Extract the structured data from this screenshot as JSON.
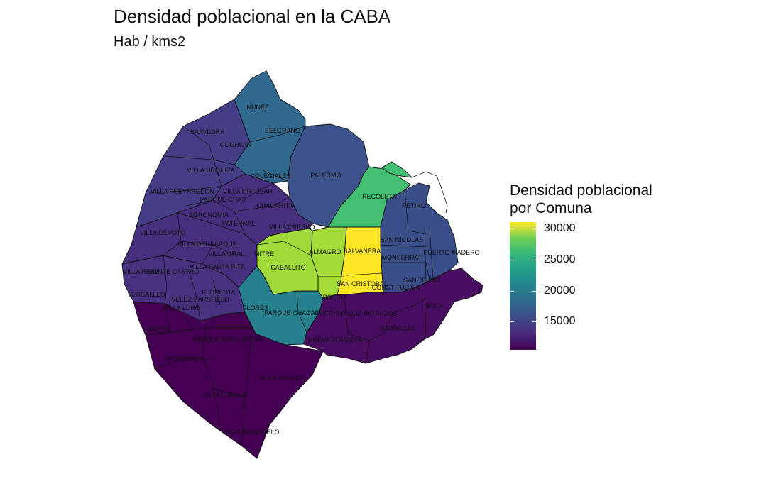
{
  "title": "Densidad poblacional en la CABA",
  "subtitle": "Hab / kms2",
  "legend": {
    "title_line1": "Densidad poblacional",
    "title_line2": "por Comuna",
    "ticks": [
      "30000",
      "25000",
      "20000",
      "15000"
    ],
    "tick_values": [
      30000,
      25000,
      20000,
      15000
    ],
    "range": [
      10500,
      31000
    ],
    "palette": "viridis"
  },
  "colors": {
    "c1": "#3a4f8a",
    "c2": "#43bf71",
    "c3": "#fde725",
    "c4": "#470d60",
    "c5": "#a5db36",
    "c6": "#a0da39",
    "c7": "#27808e",
    "c8": "#440154",
    "c9": "#440154",
    "c10": "#46327e",
    "c11": "#46307e",
    "c12": "#433e85",
    "c13": "#31688e",
    "c14": "#3b528b",
    "c15": "#472f7d"
  },
  "comunas": [
    {
      "id": 1,
      "barrios": [
        "RETIRO",
        "SAN NICOLAS",
        "PUERTO MADERO",
        "SAN TELMO",
        "MONSERRAT",
        "CONSTITUCION"
      ],
      "density": 12500
    },
    {
      "id": 2,
      "barrios": [
        "RECOLETA"
      ],
      "density": 24000
    },
    {
      "id": 3,
      "barrios": [
        "BALVANERA",
        "SAN CRISTOBAL"
      ],
      "density": 31000
    },
    {
      "id": 4,
      "barrios": [
        "BOCA",
        "BARRACAS",
        "PARQUE PATRICIOS",
        "NUEVA POMPEYA"
      ],
      "density": 11000
    },
    {
      "id": 5,
      "barrios": [
        "ALMAGRO",
        "BOEDO"
      ],
      "density": 28500
    },
    {
      "id": 6,
      "barrios": [
        "CABALLITO"
      ],
      "density": 28000
    },
    {
      "id": 7,
      "barrios": [
        "FLORES",
        "PARQUE CHACABUCO"
      ],
      "density": 19500
    },
    {
      "id": 8,
      "barrios": [
        "VILLA SOLDATI",
        "VILLA RIACHUELO",
        "VILLA LUGANO"
      ],
      "density": 10500
    },
    {
      "id": 9,
      "barrios": [
        "LINIERS",
        "MATADEROS",
        "PARQUE AVELLANEDA"
      ],
      "density": 10500
    },
    {
      "id": 10,
      "barrios": [
        "VILLA REAL",
        "MONTE CASTRO",
        "VERSALLES",
        "FLORESTA",
        "VELEZ SARSFIELD",
        "VILLA LURO"
      ],
      "density": 13000
    },
    {
      "id": 11,
      "barrios": [
        "VILLA GRAL. MITRE",
        "VILLA DEVOTO",
        "VILLA DEL PARQUE",
        "VILLA SANTA RITA"
      ],
      "density": 13000
    },
    {
      "id": 12,
      "barrios": [
        "COGHLAN",
        "SAAVEDRA",
        "VILLA URQUIZA",
        "VILLA PUEYRREDON"
      ],
      "density": 13500
    },
    {
      "id": 13,
      "barrios": [
        "NUÑEZ",
        "BELGRANO",
        "COLEGIALES"
      ],
      "density": 16500
    },
    {
      "id": 14,
      "barrios": [
        "PALERMO"
      ],
      "density": 14500
    },
    {
      "id": 15,
      "barrios": [
        "CHACARITA",
        "VILLA CRESPO",
        "PATERNAL",
        "VILLA ORTUZAR",
        "AGRONOMIA",
        "PARQUE CHAS"
      ],
      "density": 12500
    }
  ],
  "labels": {
    "nunez": "NUÑEZ",
    "saavedra": "SAAVEDRA",
    "belgrano": "BELGRANO",
    "coghlan": "COGHLAN",
    "villa_urquiza": "VILLA URQUIZA",
    "colegiales": "COLEGIALES",
    "palermo": "PALERMO",
    "villa_pueyrredon": "VILLA PUEYRREDON",
    "villa_ortuzar": "VILLA ORTUZAR",
    "parque_chas": "PARQUE CHAS",
    "recoleta": "RECOLETA",
    "chacarita": "CHACARITA",
    "retiro": "RETIRO",
    "agronomia": "AGRONOMIA",
    "paternal": "PATERNAL",
    "villa_crespo": "VILLA CRESPO",
    "villa_devoto": "VILLA DEVOTO",
    "san_nicolas": "SAN NICOLAS",
    "villa_del_parque": "VILLA DEL PARQUE",
    "almagro": "ALMAGRO",
    "balvanera": "BALVANERA",
    "villa_gral": "VILLA GRAL.",
    "mitre": "MITRE",
    "puerto_madero": "PUERTO MADERO",
    "monserrat": "MONSERRAT",
    "villa_santa_rita": "VILLA SANTA RITA",
    "caballito": "CABALLITO",
    "villa_real": "VILLA REAL",
    "monte_castro": "MONTE CASTRO",
    "san_telmo": "SAN TELMO",
    "san_cristobal": "SAN CRISTOBAL",
    "constitucion": "CONSTITUCION",
    "versalles": "VERSALLES",
    "floresta": "FLORESTA",
    "velez_sarsfield": "VELEZ SARSFIELD",
    "boedo": "BOEDO",
    "villa_luro": "VILLA LURO",
    "flores": "FLORES",
    "boca": "BOCA",
    "parque_chacabuco": "PARQUE CHACABUCO",
    "parque_patricios": "PARQUE PATRICIOS",
    "liniers": "LINIERS",
    "barracas": "BARRACAS",
    "parque_avellaneda": "PARQUE AVELLANEDA",
    "nueva_pompeya": "NUEVA POMPEYA",
    "mataderos": "MATADEROS",
    "villa_soldati": "VILLA SOLDATI",
    "villa_lugano": "VILLA LUGANO",
    "villa_riachuelo": "VILLA RIACHUELO"
  }
}
